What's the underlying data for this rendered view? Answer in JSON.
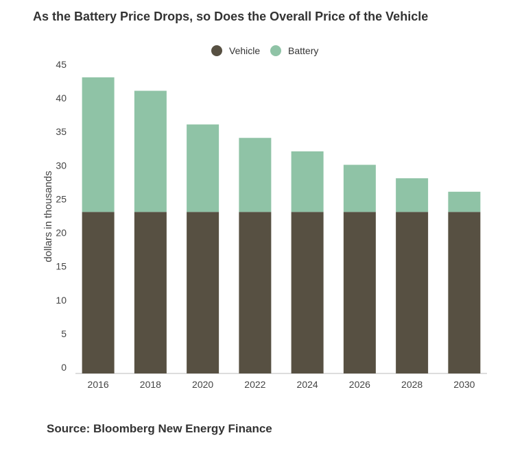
{
  "title": "As the Battery Price Drops, so Does the Overall Price of the Vehicle",
  "source": "Source:  Bloomberg New Energy Finance",
  "chart_data": {
    "type": "bar",
    "stacked": true,
    "categories": [
      "2016",
      "2018",
      "2020",
      "2022",
      "2024",
      "2026",
      "2028",
      "2030"
    ],
    "series": [
      {
        "name": "Vehicle",
        "color": "#575042",
        "values": [
          24,
          24,
          24,
          24,
          24,
          24,
          24,
          24
        ]
      },
      {
        "name": "Battery",
        "color": "#8fc3a6",
        "values": [
          20,
          18,
          13,
          11,
          9,
          7,
          5,
          3
        ]
      }
    ],
    "ylabel": "dollars in thousands",
    "xlabel": "",
    "ylim": [
      0,
      45
    ],
    "yticks": [
      0,
      5,
      10,
      15,
      20,
      25,
      30,
      35,
      40,
      45
    ],
    "legend_position": "top-center",
    "grid": false
  }
}
